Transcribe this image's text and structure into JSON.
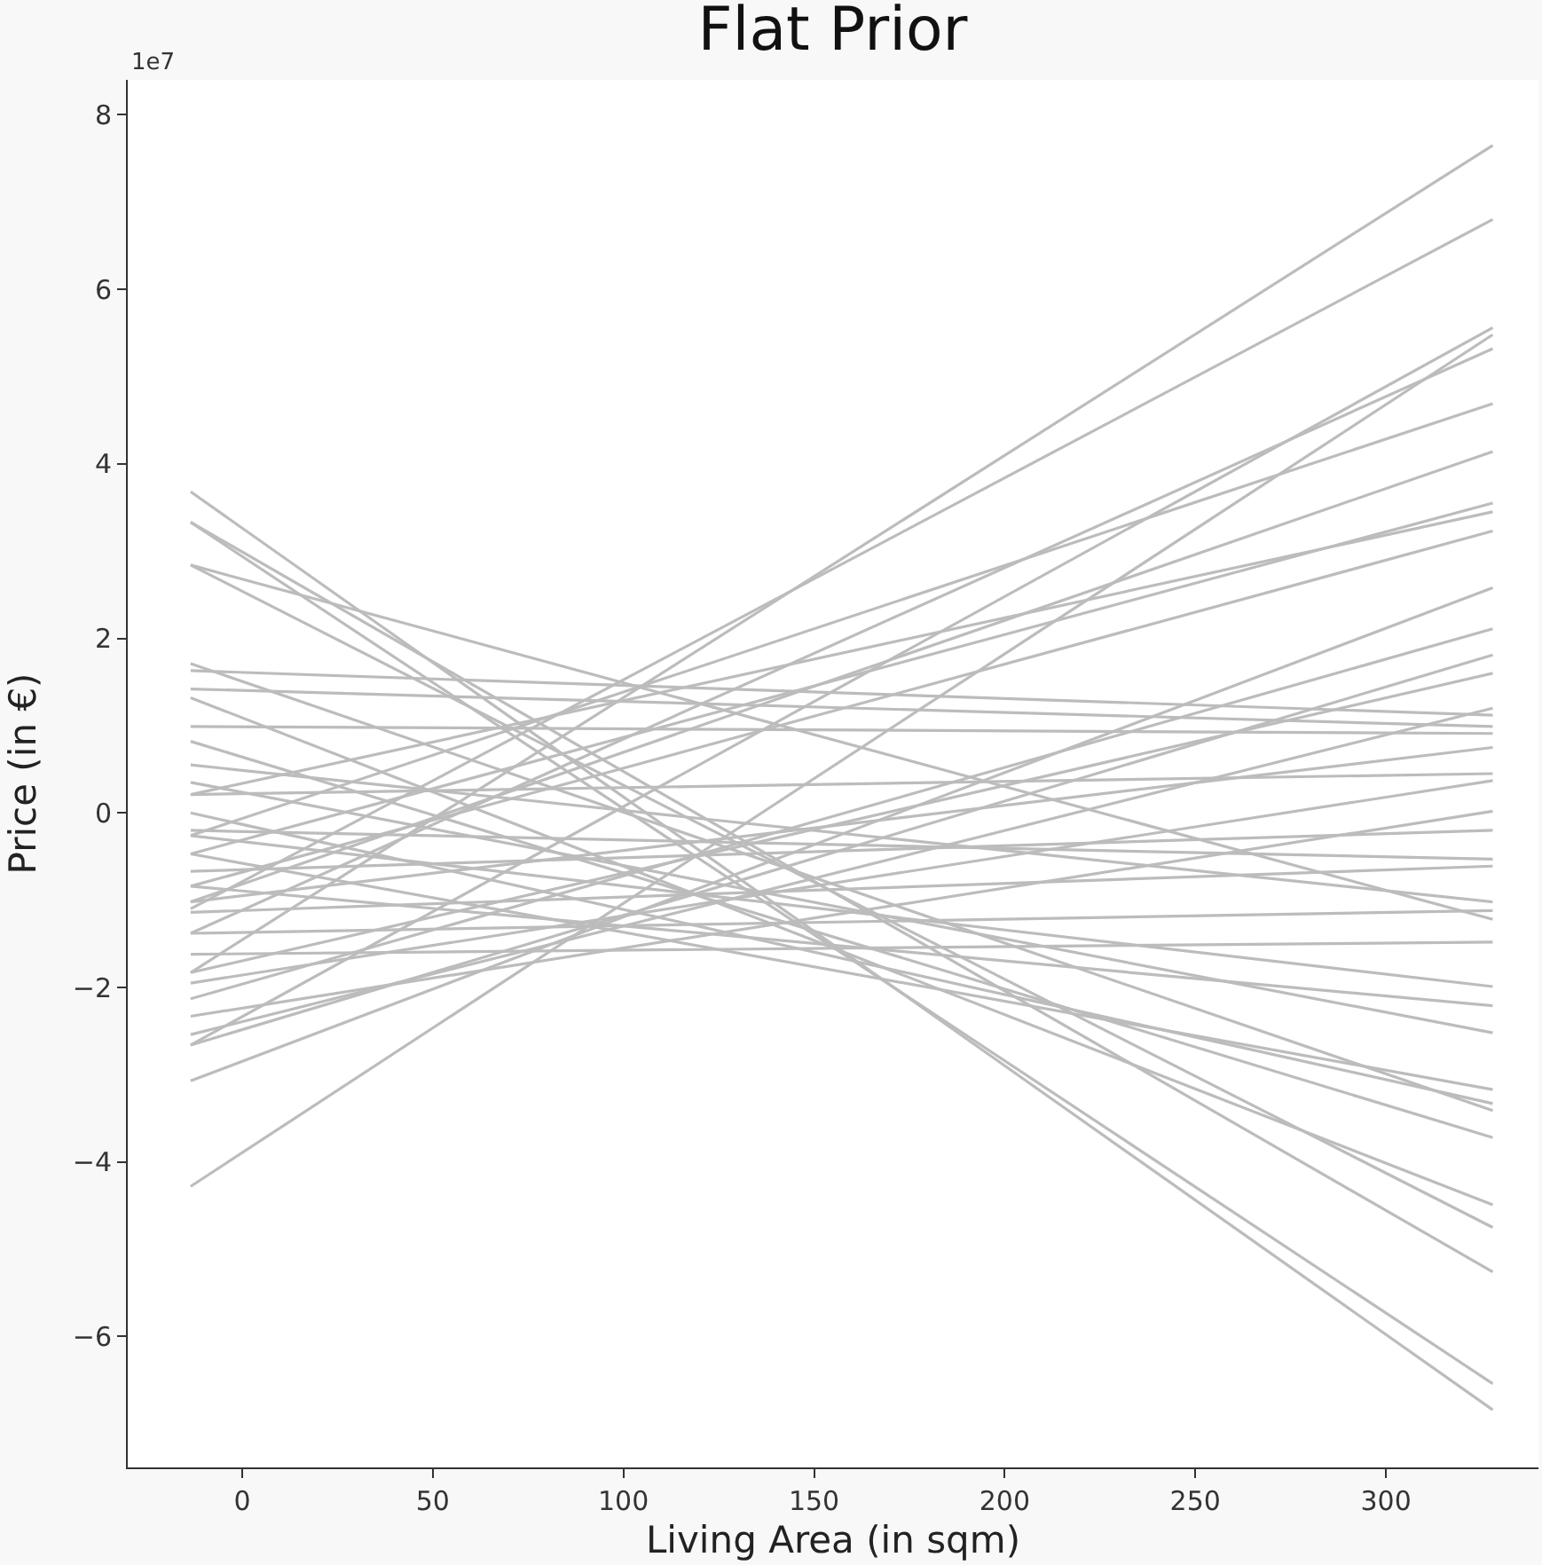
{
  "chart_data": {
    "type": "line",
    "title": "Flat Prior",
    "xlabel": "Living Area (in sqm)",
    "ylabel": "Price (in €)",
    "annotations": [
      "1e7"
    ],
    "x": [
      -13.5,
      328
    ],
    "xlim": [
      -30,
      340
    ],
    "ylim": [
      -7.5,
      8.4
    ],
    "xticks": [
      0,
      50,
      100,
      150,
      200,
      250,
      300
    ],
    "yticks": [
      -6,
      -4,
      -2,
      0,
      2,
      4,
      6,
      8
    ],
    "marker": "none",
    "line_style": "solid",
    "series": [
      {
        "color": "#bcbcbc",
        "values": [
          3.68,
          -6.84
        ]
      },
      {
        "color": "#bcbcbc",
        "values": [
          3.33,
          -6.54
        ]
      },
      {
        "color": "#bcbcbc",
        "values": [
          3.33,
          -5.26
        ]
      },
      {
        "color": "#bcbcbc",
        "values": [
          2.84,
          -4.75
        ]
      },
      {
        "color": "#bcbcbc",
        "values": [
          2.84,
          -1.22
        ]
      },
      {
        "color": "#bcbcbc",
        "values": [
          1.71,
          -3.41
        ]
      },
      {
        "color": "#bcbcbc",
        "values": [
          1.63,
          1.12
        ]
      },
      {
        "color": "#bcbcbc",
        "values": [
          1.42,
          0.99
        ]
      },
      {
        "color": "#bcbcbc",
        "values": [
          1.32,
          -4.49
        ]
      },
      {
        "color": "#bcbcbc",
        "values": [
          0.99,
          0.91
        ]
      },
      {
        "color": "#bcbcbc",
        "values": [
          0.82,
          -3.72
        ]
      },
      {
        "color": "#bcbcbc",
        "values": [
          0.55,
          -1.02
        ]
      },
      {
        "color": "#bcbcbc",
        "values": [
          0.35,
          -2.52
        ]
      },
      {
        "color": "#bcbcbc",
        "values": [
          0.21,
          0.45
        ]
      },
      {
        "color": "#bcbcbc",
        "values": [
          0.0,
          -3.33
        ]
      },
      {
        "color": "#bcbcbc",
        "values": [
          -0.2,
          -0.53
        ]
      },
      {
        "color": "#bcbcbc",
        "values": [
          -0.26,
          -1.99
        ]
      },
      {
        "color": "#bcbcbc",
        "values": [
          -0.47,
          -3.17
        ]
      },
      {
        "color": "#bcbcbc",
        "values": [
          -0.67,
          -0.2
        ]
      },
      {
        "color": "#bcbcbc",
        "values": [
          -0.84,
          -2.21
        ]
      },
      {
        "color": "#bcbcbc",
        "values": [
          -1.02,
          0.75
        ]
      },
      {
        "color": "#bcbcbc",
        "values": [
          -1.14,
          -0.61
        ]
      },
      {
        "color": "#bcbcbc",
        "values": [
          -1.38,
          -1.12
        ]
      },
      {
        "color": "#bcbcbc",
        "values": [
          -1.62,
          -1.48
        ]
      },
      {
        "color": "#bcbcbc",
        "values": [
          -1.83,
          1.6
        ]
      },
      {
        "color": "#bcbcbc",
        "values": [
          -1.95,
          0.37
        ]
      },
      {
        "color": "#bcbcbc",
        "values": [
          -2.13,
          2.11
        ]
      },
      {
        "color": "#bcbcbc",
        "values": [
          -2.33,
          0.02
        ]
      },
      {
        "color": "#bcbcbc",
        "values": [
          -2.54,
          1.2
        ]
      },
      {
        "color": "#bcbcbc",
        "values": [
          -2.66,
          1.81
        ]
      },
      {
        "color": "#bcbcbc",
        "values": [
          -3.07,
          2.58
        ]
      },
      {
        "color": "#bcbcbc",
        "values": [
          -4.28,
          5.48
        ]
      },
      {
        "color": "#bcbcbc",
        "values": [
          -1.83,
          7.65
        ]
      },
      {
        "color": "#bcbcbc",
        "values": [
          -1.1,
          6.8
        ]
      },
      {
        "color": "#bcbcbc",
        "values": [
          -2.66,
          5.56
        ]
      },
      {
        "color": "#bcbcbc",
        "values": [
          -1.38,
          5.32
        ]
      },
      {
        "color": "#bcbcbc",
        "values": [
          -0.26,
          4.69
        ]
      },
      {
        "color": "#bcbcbc",
        "values": [
          -1.02,
          4.14
        ]
      },
      {
        "color": "#bcbcbc",
        "values": [
          -0.47,
          3.55
        ]
      },
      {
        "color": "#bcbcbc",
        "values": [
          0.21,
          3.45
        ]
      },
      {
        "color": "#bcbcbc",
        "values": [
          -0.84,
          3.23
        ]
      }
    ]
  }
}
